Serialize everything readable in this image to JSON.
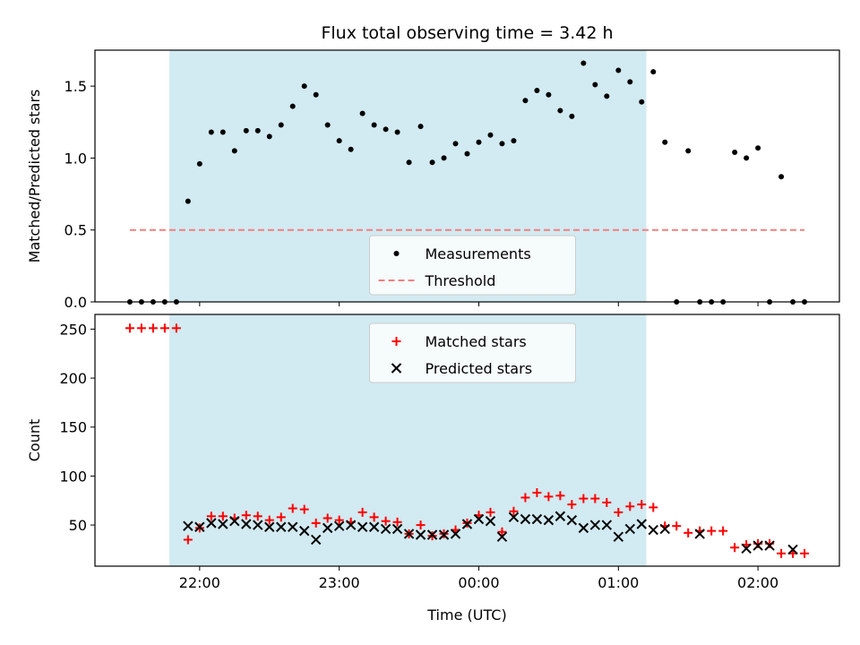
{
  "chart_data": [
    {
      "type": "scatter",
      "title": "Flux total observing time = 3.42 h",
      "xlabel": "",
      "ylabel": "Matched/Predicted stars",
      "xlim": [
        "21:15",
        "02:35"
      ],
      "ylim": [
        0,
        1.75
      ],
      "yticks": [
        0.0,
        0.5,
        1.0,
        1.5
      ],
      "ytick_labels": [
        "0.0",
        "0.5",
        "1.0",
        "1.5"
      ],
      "xticks": [
        "22:00",
        "23:00",
        "00:00",
        "01:00",
        "02:00"
      ],
      "shaded_span": {
        "start": "21:47",
        "end": "01:12",
        "color": "#add8e6"
      },
      "legend": {
        "location": "lower center",
        "entries": [
          "Measurements",
          "Threshold"
        ]
      },
      "series": [
        {
          "name": "Measurements",
          "marker": "dot",
          "color": "#000000",
          "points": [
            [
              "21:30",
              0
            ],
            [
              "21:35",
              0
            ],
            [
              "21:40",
              0
            ],
            [
              "21:45",
              0
            ],
            [
              "21:50",
              0
            ],
            [
              "21:55",
              0.7
            ],
            [
              "22:00",
              0.96
            ],
            [
              "22:05",
              1.18
            ],
            [
              "22:10",
              1.18
            ],
            [
              "22:15",
              1.05
            ],
            [
              "22:20",
              1.19
            ],
            [
              "22:25",
              1.19
            ],
            [
              "22:30",
              1.15
            ],
            [
              "22:35",
              1.23
            ],
            [
              "22:40",
              1.36
            ],
            [
              "22:45",
              1.5
            ],
            [
              "22:50",
              1.44
            ],
            [
              "22:55",
              1.23
            ],
            [
              "23:00",
              1.12
            ],
            [
              "23:05",
              1.06
            ],
            [
              "23:10",
              1.31
            ],
            [
              "23:15",
              1.23
            ],
            [
              "23:20",
              1.2
            ],
            [
              "23:25",
              1.18
            ],
            [
              "23:30",
              0.97
            ],
            [
              "23:35",
              1.22
            ],
            [
              "23:40",
              0.97
            ],
            [
              "23:45",
              1.0
            ],
            [
              "23:50",
              1.1
            ],
            [
              "23:55",
              1.03
            ],
            [
              "00:00",
              1.11
            ],
            [
              "00:05",
              1.16
            ],
            [
              "00:10",
              1.1
            ],
            [
              "00:15",
              1.12
            ],
            [
              "00:20",
              1.4
            ],
            [
              "00:25",
              1.47
            ],
            [
              "00:30",
              1.44
            ],
            [
              "00:35",
              1.33
            ],
            [
              "00:40",
              1.29
            ],
            [
              "00:45",
              1.66
            ],
            [
              "00:50",
              1.51
            ],
            [
              "00:55",
              1.43
            ],
            [
              "01:00",
              1.61
            ],
            [
              "01:05",
              1.53
            ],
            [
              "01:10",
              1.39
            ],
            [
              "01:15",
              1.6
            ],
            [
              "01:20",
              1.11
            ],
            [
              "01:25",
              0
            ],
            [
              "01:30",
              1.05
            ],
            [
              "01:35",
              0
            ],
            [
              "01:40",
              0
            ],
            [
              "01:45",
              0
            ],
            [
              "01:50",
              1.04
            ],
            [
              "01:55",
              1.0
            ],
            [
              "02:00",
              1.07
            ],
            [
              "02:05",
              0
            ],
            [
              "02:10",
              0.87
            ],
            [
              "02:15",
              0
            ],
            [
              "02:20",
              0
            ]
          ]
        },
        {
          "name": "Threshold",
          "style": "dashed-line",
          "color": "#f08080",
          "points": [
            [
              "21:30",
              0.5
            ],
            [
              "02:20",
              0.5
            ]
          ]
        }
      ]
    },
    {
      "type": "scatter",
      "title": "",
      "xlabel": "Time (UTC)",
      "ylabel": "Count",
      "xlim": [
        "21:15",
        "02:35"
      ],
      "ylim": [
        8,
        265
      ],
      "yticks": [
        50,
        100,
        150,
        200,
        250
      ],
      "ytick_labels": [
        "50",
        "100",
        "150",
        "200",
        "250"
      ],
      "xticks": [
        "22:00",
        "23:00",
        "00:00",
        "01:00",
        "02:00"
      ],
      "xtick_labels": [
        "22:00",
        "23:00",
        "00:00",
        "01:00",
        "02:00"
      ],
      "shaded_span": {
        "start": "21:47",
        "end": "01:12",
        "color": "#add8e6"
      },
      "legend": {
        "location": "upper center",
        "entries": [
          "Matched stars",
          "Predicted stars"
        ]
      },
      "series": [
        {
          "name": "Matched stars",
          "marker": "plus",
          "color": "#ff0000",
          "points": [
            [
              "21:30",
              251
            ],
            [
              "21:35",
              251
            ],
            [
              "21:40",
              251
            ],
            [
              "21:45",
              251
            ],
            [
              "21:50",
              251
            ],
            [
              "21:55",
              35
            ],
            [
              "22:00",
              47
            ],
            [
              "22:05",
              59
            ],
            [
              "22:10",
              59
            ],
            [
              "22:15",
              57
            ],
            [
              "22:20",
              60
            ],
            [
              "22:25",
              59
            ],
            [
              "22:30",
              55
            ],
            [
              "22:35",
              58
            ],
            [
              "22:40",
              67
            ],
            [
              "22:45",
              66
            ],
            [
              "22:50",
              52
            ],
            [
              "22:55",
              57
            ],
            [
              "23:00",
              55
            ],
            [
              "23:05",
              53
            ],
            [
              "23:10",
              63
            ],
            [
              "23:15",
              58
            ],
            [
              "23:20",
              54
            ],
            [
              "23:25",
              53
            ],
            [
              "23:30",
              41
            ],
            [
              "23:35",
              50
            ],
            [
              "23:40",
              39
            ],
            [
              "23:45",
              41
            ],
            [
              "23:50",
              45
            ],
            [
              "23:55",
              52
            ],
            [
              "00:00",
              60
            ],
            [
              "00:05",
              63
            ],
            [
              "00:10",
              43
            ],
            [
              "00:15",
              64
            ],
            [
              "00:20",
              78
            ],
            [
              "00:25",
              83
            ],
            [
              "00:30",
              79
            ],
            [
              "00:35",
              80
            ],
            [
              "00:40",
              71
            ],
            [
              "00:45",
              77
            ],
            [
              "00:50",
              77
            ],
            [
              "00:55",
              73
            ],
            [
              "01:00",
              63
            ],
            [
              "01:05",
              69
            ],
            [
              "01:10",
              71
            ],
            [
              "01:15",
              68
            ],
            [
              "01:20",
              49
            ],
            [
              "01:25",
              49
            ],
            [
              "01:30",
              42
            ],
            [
              "01:35",
              44
            ],
            [
              "01:40",
              44
            ],
            [
              "01:45",
              44
            ],
            [
              "01:50",
              27
            ],
            [
              "01:55",
              30
            ],
            [
              "02:00",
              31
            ],
            [
              "02:05",
              31
            ],
            [
              "02:10",
              21
            ],
            [
              "02:15",
              21
            ],
            [
              "02:20",
              21
            ]
          ]
        },
        {
          "name": "Predicted stars",
          "marker": "x",
          "color": "#000000",
          "points": [
            [
              "21:55",
              49
            ],
            [
              "22:00",
              48
            ],
            [
              "22:05",
              52
            ],
            [
              "22:10",
              51
            ],
            [
              "22:15",
              54
            ],
            [
              "22:20",
              51
            ],
            [
              "22:25",
              50
            ],
            [
              "22:30",
              48
            ],
            [
              "22:35",
              48
            ],
            [
              "22:40",
              48
            ],
            [
              "22:45",
              44
            ],
            [
              "22:50",
              35
            ],
            [
              "22:55",
              47
            ],
            [
              "23:00",
              49
            ],
            [
              "23:05",
              50
            ],
            [
              "23:10",
              48
            ],
            [
              "23:15",
              48
            ],
            [
              "23:20",
              46
            ],
            [
              "23:25",
              46
            ],
            [
              "23:30",
              41
            ],
            [
              "23:35",
              40
            ],
            [
              "23:40",
              40
            ],
            [
              "23:45",
              40
            ],
            [
              "23:50",
              41
            ],
            [
              "23:55",
              51
            ],
            [
              "00:00",
              56
            ],
            [
              "00:05",
              54
            ],
            [
              "00:10",
              38
            ],
            [
              "00:15",
              58
            ],
            [
              "00:20",
              56
            ],
            [
              "00:25",
              56
            ],
            [
              "00:30",
              55
            ],
            [
              "00:35",
              59
            ],
            [
              "00:40",
              55
            ],
            [
              "00:45",
              47
            ],
            [
              "00:50",
              50
            ],
            [
              "00:55",
              50
            ],
            [
              "01:00",
              38
            ],
            [
              "01:05",
              46
            ],
            [
              "01:10",
              51
            ],
            [
              "01:15",
              45
            ],
            [
              "01:20",
              46
            ],
            [
              "01:35",
              41
            ],
            [
              "01:55",
              26
            ],
            [
              "02:00",
              29
            ],
            [
              "02:05",
              29
            ],
            [
              "02:15",
              25
            ]
          ]
        }
      ]
    }
  ]
}
